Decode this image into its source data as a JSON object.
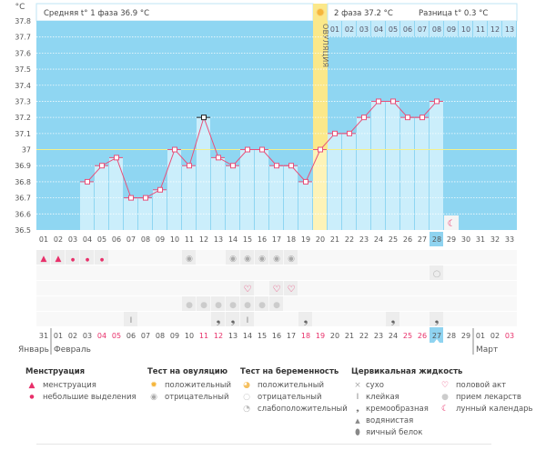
{
  "header": {
    "phase1": "Средняя t° 1 фаза 36.9 °C",
    "phase2": "2 фаза 37.2 °C",
    "difference": "Разница t° 0.3 °C",
    "ovulation_label": "ОВУЛЯЦИЯ"
  },
  "chart_data": {
    "type": "line",
    "ylabel": "°C",
    "ylim": [
      36.5,
      37.8
    ],
    "yticks": [
      "36.5",
      "36.6",
      "36.7",
      "36.8",
      "36.9",
      "37",
      "37.1",
      "37.2",
      "37.3",
      "37.4",
      "37.5",
      "37.6",
      "37.7",
      "37.8"
    ],
    "cycle_days": [
      "01",
      "02",
      "03",
      "04",
      "05",
      "06",
      "07",
      "08",
      "09",
      "10",
      "11",
      "12",
      "13",
      "14",
      "15",
      "16",
      "17",
      "18",
      "19",
      "20",
      "21",
      "22",
      "23",
      "24",
      "25",
      "26",
      "27",
      "28",
      "29",
      "30",
      "31",
      "32",
      "33"
    ],
    "temperatures": [
      null,
      null,
      null,
      36.8,
      36.9,
      36.95,
      36.7,
      36.7,
      36.75,
      37.0,
      36.9,
      37.2,
      36.95,
      36.9,
      37.0,
      37.0,
      36.9,
      36.9,
      36.8,
      37.0,
      37.1,
      37.1,
      37.2,
      37.3,
      37.3,
      37.2,
      37.2,
      37.3,
      null,
      null,
      null,
      null,
      null
    ],
    "coverline": 37.0,
    "ovulation_day": 20,
    "selected_day": 12,
    "today_day": 28,
    "luteal_days": [
      "01",
      "02",
      "03",
      "04",
      "05",
      "06",
      "07",
      "08",
      "09",
      "10",
      "11",
      "12",
      "13"
    ],
    "moon_day": 29,
    "grid": true
  },
  "calendar": {
    "dates": [
      "31",
      "01",
      "02",
      "03",
      "04",
      "05",
      "06",
      "07",
      "08",
      "09",
      "10",
      "11",
      "12",
      "13",
      "14",
      "15",
      "16",
      "17",
      "18",
      "19",
      "20",
      "21",
      "22",
      "23",
      "24",
      "25",
      "26",
      "27",
      "28",
      "29",
      "01",
      "02",
      "03"
    ],
    "weekend_dates_idx": [
      4,
      5,
      11,
      12,
      18,
      19,
      25,
      26,
      32
    ],
    "months": [
      {
        "label": "Январь"
      },
      {
        "label": "Февраль"
      },
      {
        "label": "Март"
      }
    ]
  },
  "markers": {
    "menstruation_heavy": [
      1,
      2
    ],
    "menstruation_light": [
      3,
      4,
      5
    ],
    "ovulation_negative": [
      11,
      14,
      15,
      16,
      17,
      18
    ],
    "pregnancy_negative": [
      28
    ],
    "intercourse": [
      15,
      17,
      18
    ],
    "medication": [
      11,
      12,
      13,
      14,
      15,
      16,
      17
    ],
    "sticky": [
      7,
      15
    ],
    "creamy": [
      13,
      14,
      19,
      25,
      28
    ]
  },
  "legend": {
    "menstruation": {
      "title": "Менструация",
      "items": [
        "менструация",
        "небольшие выделения"
      ]
    },
    "ovulation_test": {
      "title": "Тест на овуляцию",
      "items": [
        "положительный",
        "отрицательный"
      ]
    },
    "pregnancy_test": {
      "title": "Тест на беременность",
      "items": [
        "положительный",
        "отрицательный",
        "слабоположительный"
      ]
    },
    "cervical_fluid": {
      "title": "Цервикальная жидкость",
      "items": [
        "сухо",
        "клейкая",
        "кремообразная",
        "водянистая",
        "яичный белок"
      ]
    },
    "other": {
      "items": [
        "половой акт",
        "прием лекарств",
        "лунный календарь"
      ]
    }
  },
  "colors": {
    "plot_bg": "#8fd6f2",
    "bar": "#cbeefb",
    "line": "#e8507a",
    "ovulation": "#fbe88a",
    "coverline": "#f4f08c",
    "weekend": "#e8306a",
    "today": "#8fd3f0"
  }
}
